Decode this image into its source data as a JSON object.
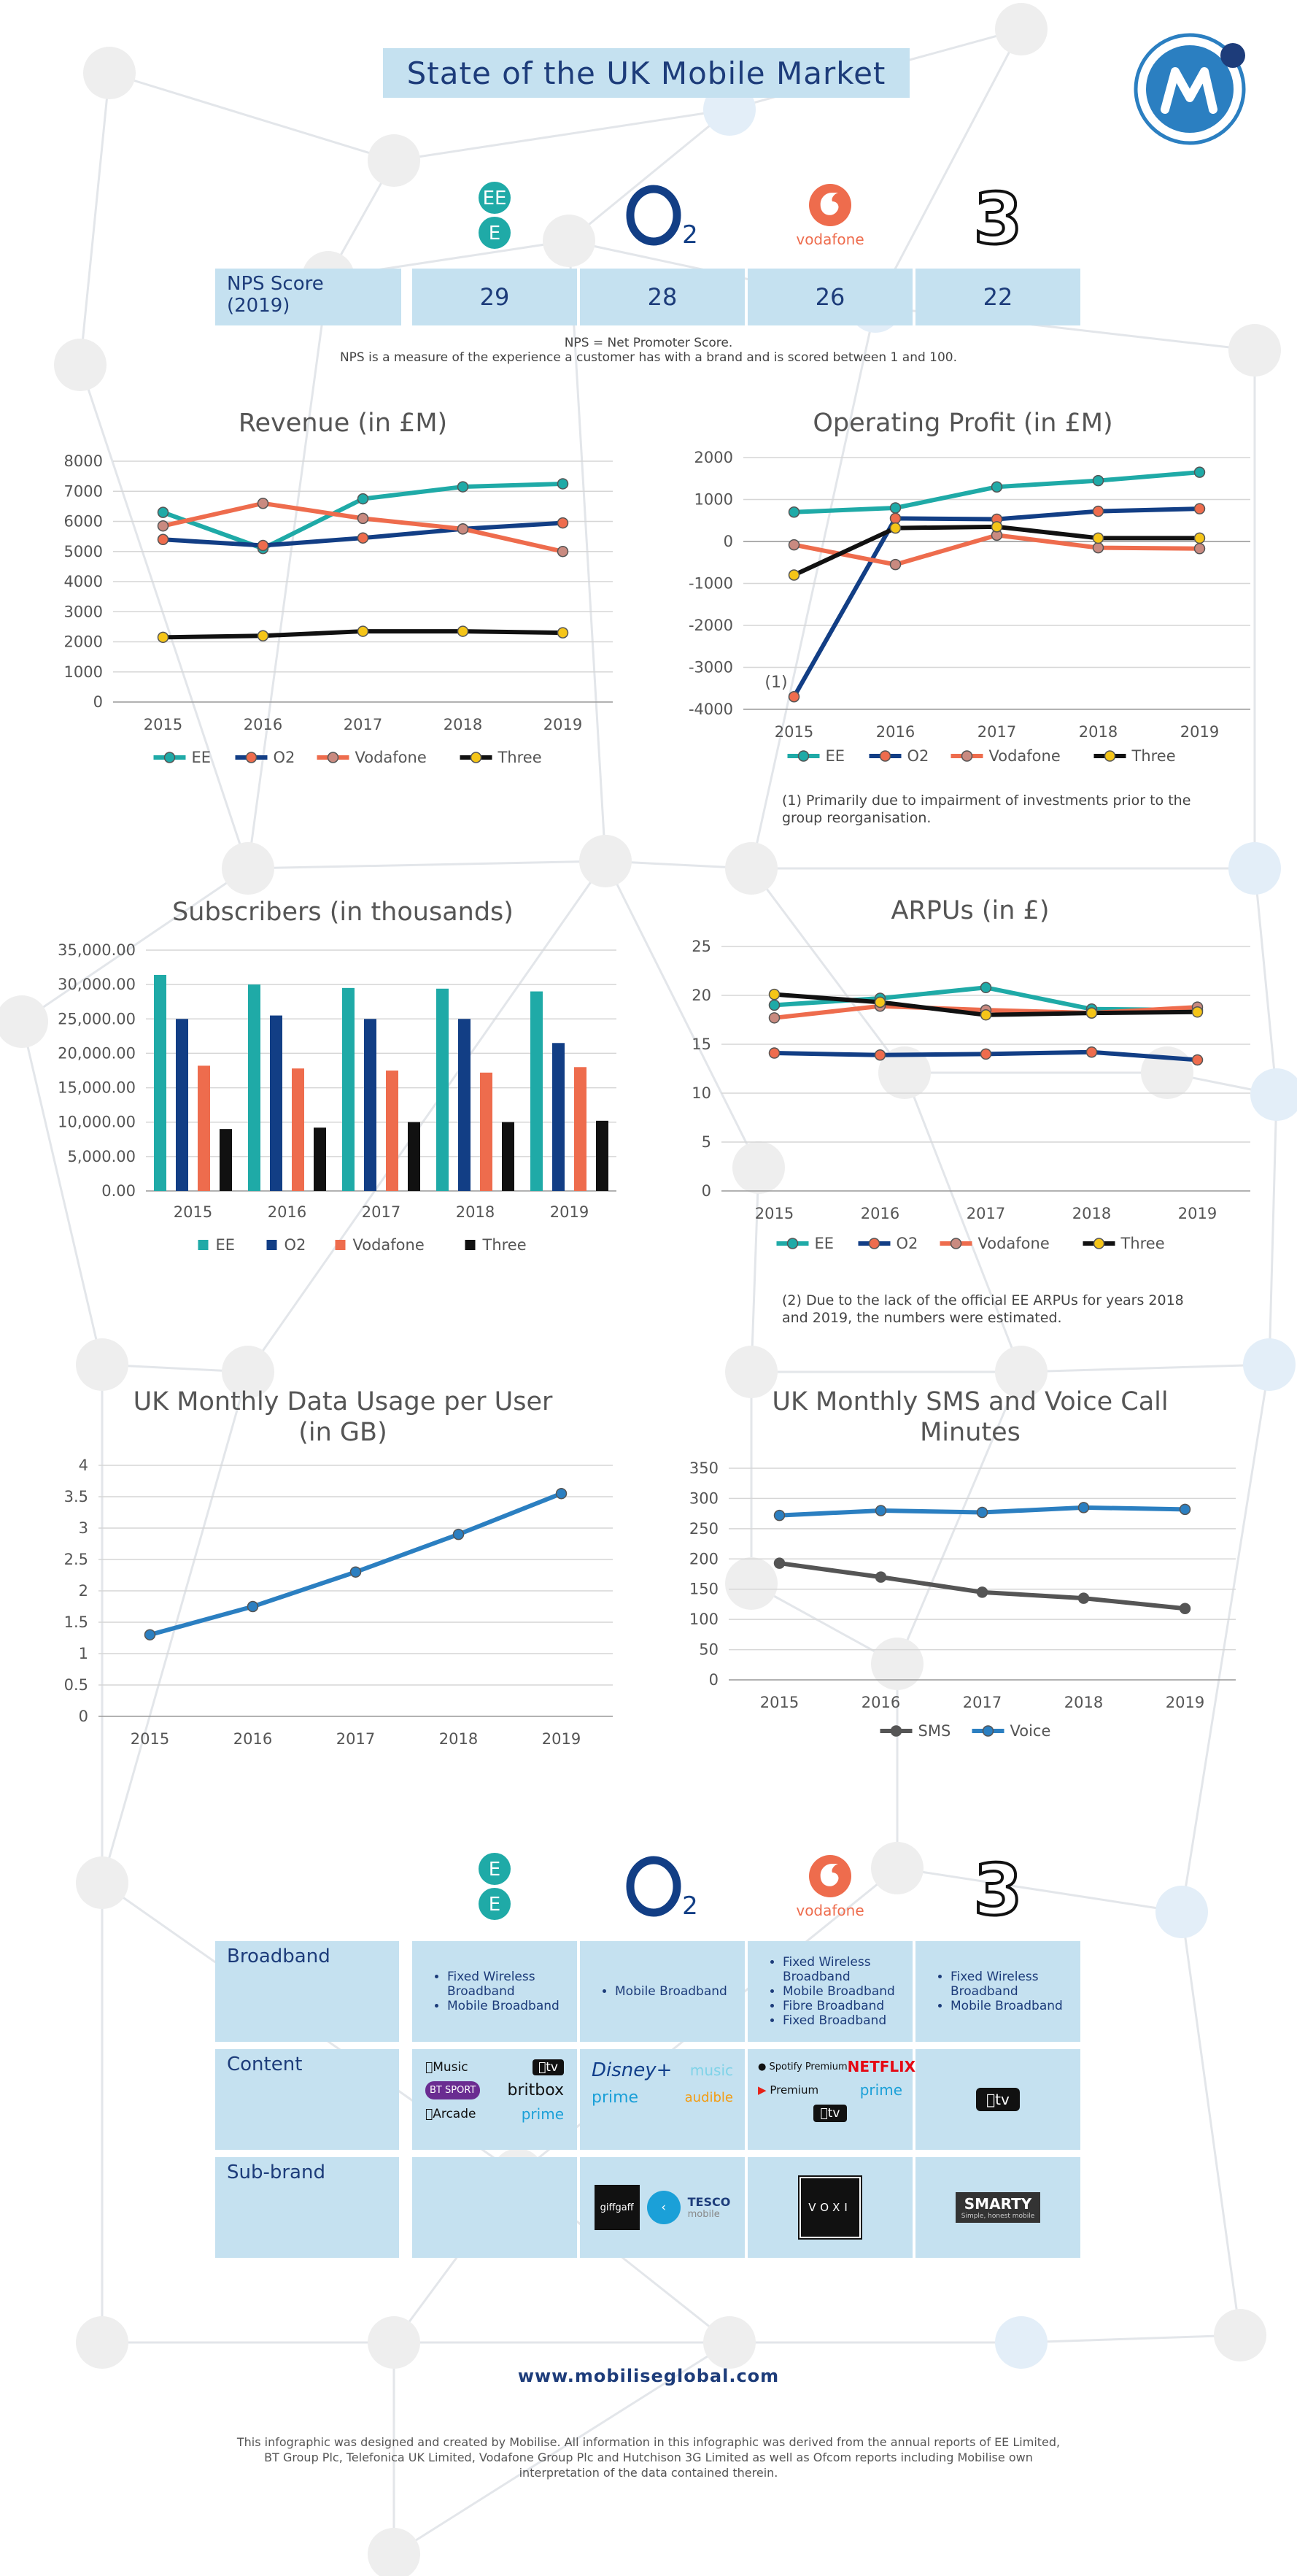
{
  "title": "State of the UK Mobile Market",
  "colors": {
    "ee": "#1faaa7",
    "o2": "#123e85",
    "vodafone": "#ee6c4d",
    "three": "#111111",
    "dot_yellow": "#f5c518",
    "accent": "#2b7fc1",
    "box": "#c5e1f0",
    "navy": "#1d3c7a"
  },
  "brands": [
    {
      "name": "EE",
      "logo_text": "EE",
      "icon": "ee-logo"
    },
    {
      "name": "O2",
      "logo_text": "O2",
      "icon": "o2-logo"
    },
    {
      "name": "Vodafone",
      "logo_text": "vodafone",
      "icon": "vodafone-logo"
    },
    {
      "name": "Three",
      "logo_text": "3",
      "icon": "three-logo"
    }
  ],
  "nps": {
    "label": "NPS Score (2019)",
    "values": [
      "29",
      "28",
      "26",
      "22"
    ],
    "note_1": "NPS = Net Promoter Score.",
    "note_2": "NPS is a measure of the experience a customer has with a brand and is scored between 1 and 100."
  },
  "chart_data": [
    {
      "id": "revenue",
      "type": "line",
      "title": "Revenue (in £M)",
      "categories": [
        "2015",
        "2016",
        "2017",
        "2018",
        "2019"
      ],
      "ylim": [
        0,
        8000
      ],
      "yticks": [
        "0",
        "1000",
        "2000",
        "3000",
        "4000",
        "5000",
        "6000",
        "7000",
        "8000"
      ],
      "series": [
        {
          "name": "EE",
          "values": [
            6300,
            5100,
            6750,
            7150,
            7250
          ]
        },
        {
          "name": "O2",
          "values": [
            5400,
            5200,
            5450,
            5750,
            5950
          ]
        },
        {
          "name": "Vodafone",
          "values": [
            5850,
            6600,
            6100,
            5750,
            5000
          ]
        },
        {
          "name": "Three",
          "values": [
            2150,
            2200,
            2350,
            2350,
            2300
          ]
        }
      ],
      "legend": "bottom",
      "grid": true
    },
    {
      "id": "profit",
      "type": "line",
      "title": "Operating Profit (in £M)",
      "categories": [
        "2015",
        "2016",
        "2017",
        "2018",
        "2019"
      ],
      "ylim": [
        -4000,
        2000
      ],
      "yticks": [
        "-4000",
        "-3000",
        "-2000",
        "-1000",
        "0",
        "1000",
        "2000"
      ],
      "series": [
        {
          "name": "EE",
          "values": [
            700,
            800,
            1300,
            1450,
            1650
          ]
        },
        {
          "name": "O2",
          "values": [
            -3700,
            550,
            530,
            720,
            780
          ]
        },
        {
          "name": "Vodafone",
          "values": [
            -80,
            -550,
            150,
            -150,
            -170
          ]
        },
        {
          "name": "Three",
          "values": [
            -800,
            320,
            350,
            80,
            80
          ]
        }
      ],
      "annotation": "(1)",
      "footnote": "(1) Primarily due to impairment of investments prior to the group reorganisation.",
      "legend": "bottom",
      "grid": true
    },
    {
      "id": "subscribers",
      "type": "bar",
      "title": "Subscribers (in thousands)",
      "categories": [
        "2015",
        "2016",
        "2017",
        "2018",
        "2019"
      ],
      "ylim": [
        0,
        35000
      ],
      "yticks": [
        "0.00",
        "5,000.00",
        "10,000.00",
        "15,000.00",
        "20,000.00",
        "25,000.00",
        "30,000.00",
        "35,000.00"
      ],
      "series": [
        {
          "name": "EE",
          "values": [
            31400,
            30000,
            29500,
            29400,
            29000
          ]
        },
        {
          "name": "O2",
          "values": [
            25000,
            25500,
            25000,
            25000,
            21500
          ]
        },
        {
          "name": "Vodafone",
          "values": [
            18200,
            17800,
            17500,
            17200,
            18000
          ]
        },
        {
          "name": "Three",
          "values": [
            9000,
            9200,
            10000,
            10000,
            10200
          ]
        }
      ],
      "legend": "bottom",
      "grid": true
    },
    {
      "id": "arpu",
      "type": "line",
      "title": "ARPUs (in £)",
      "categories": [
        "2015",
        "2016",
        "2017",
        "2018",
        "2019"
      ],
      "ylim": [
        0,
        25
      ],
      "yticks": [
        "0",
        "5",
        "10",
        "15",
        "20",
        "25"
      ],
      "series": [
        {
          "name": "EE",
          "values": [
            19.0,
            19.7,
            20.8,
            18.6,
            18.5
          ]
        },
        {
          "name": "O2",
          "values": [
            14.1,
            13.9,
            14.0,
            14.2,
            13.4
          ]
        },
        {
          "name": "Vodafone",
          "values": [
            17.7,
            18.9,
            18.5,
            18.2,
            18.8
          ]
        },
        {
          "name": "Three",
          "values": [
            20.1,
            19.3,
            18.0,
            18.2,
            18.3
          ]
        }
      ],
      "footnote": "(2) Due to the lack of the official EE ARPUs for years 2018 and 2019, the numbers were estimated.",
      "legend": "bottom",
      "grid": true
    },
    {
      "id": "data",
      "type": "line",
      "title": "UK Monthly Data Usage per User (in GB)",
      "title_lines": [
        "UK Monthly Data Usage per User",
        "(in GB)"
      ],
      "categories": [
        "2015",
        "2016",
        "2017",
        "2018",
        "2019"
      ],
      "ylim": [
        0,
        4
      ],
      "yticks": [
        "0",
        "0.5",
        "1",
        "1.5",
        "2",
        "2.5",
        "3",
        "3.5",
        "4"
      ],
      "series": [
        {
          "values": [
            1.3,
            1.75,
            2.3,
            2.9,
            3.55
          ]
        }
      ],
      "grid": true
    },
    {
      "id": "sms",
      "type": "line",
      "title": "UK Monthly SMS and Voice Call Minutes",
      "title_lines": [
        "UK Monthly SMS and Voice Call",
        "Minutes"
      ],
      "categories": [
        "2015",
        "2016",
        "2017",
        "2018",
        "2019"
      ],
      "ylim": [
        0,
        350
      ],
      "yticks": [
        "0",
        "50",
        "100",
        "150",
        "200",
        "250",
        "300",
        "350"
      ],
      "series": [
        {
          "name": "SMS",
          "values": [
            193,
            170,
            145,
            135,
            118
          ]
        },
        {
          "name": "Voice",
          "values": [
            272,
            280,
            277,
            285,
            282
          ]
        }
      ],
      "legend": "bottom",
      "grid": true
    }
  ],
  "services": {
    "rows": [
      "Broadband",
      "Content",
      "Sub-brand"
    ],
    "broadband": [
      [
        "Fixed Wireless Broadband",
        "Mobile Broadband"
      ],
      [
        "Mobile Broadband"
      ],
      [
        "Fixed Wireless Broadband",
        "Mobile Broadband",
        "Fibre Broadband",
        "Fixed Broadband"
      ],
      [
        "Fixed Wireless Broadband",
        "Mobile Broadband"
      ]
    ],
    "content": {
      "ee": [
        "Music",
        "tv",
        "BT SPORT",
        "britbox",
        "Arcade",
        "prime"
      ],
      "o2": [
        "Disney+",
        "music",
        "prime",
        "audible"
      ],
      "vodafone": [
        "Spotify Premium",
        "NETFLIX",
        "Premium",
        "prime",
        "tv"
      ],
      "three": [
        "tv"
      ]
    },
    "subbrand": {
      "o2": [
        "giffgaff",
        "TESCO",
        "mobile"
      ],
      "vodafone": [
        "VOXI"
      ],
      "three": [
        "SMARTY",
        "Simple, honest mobile"
      ]
    }
  },
  "footer": {
    "website": "www.mobiliseglobal.com",
    "disclaimer": "This infographic was designed and created by Mobilise. All information in this infographic was derived from the annual reports of EE Limited, BT Group Plc, Telefonica UK Limited, Vodafone Group Plc and Hutchison 3G Limited as well as Ofcom reports including Mobilise own interpretation of the data contained therein."
  }
}
